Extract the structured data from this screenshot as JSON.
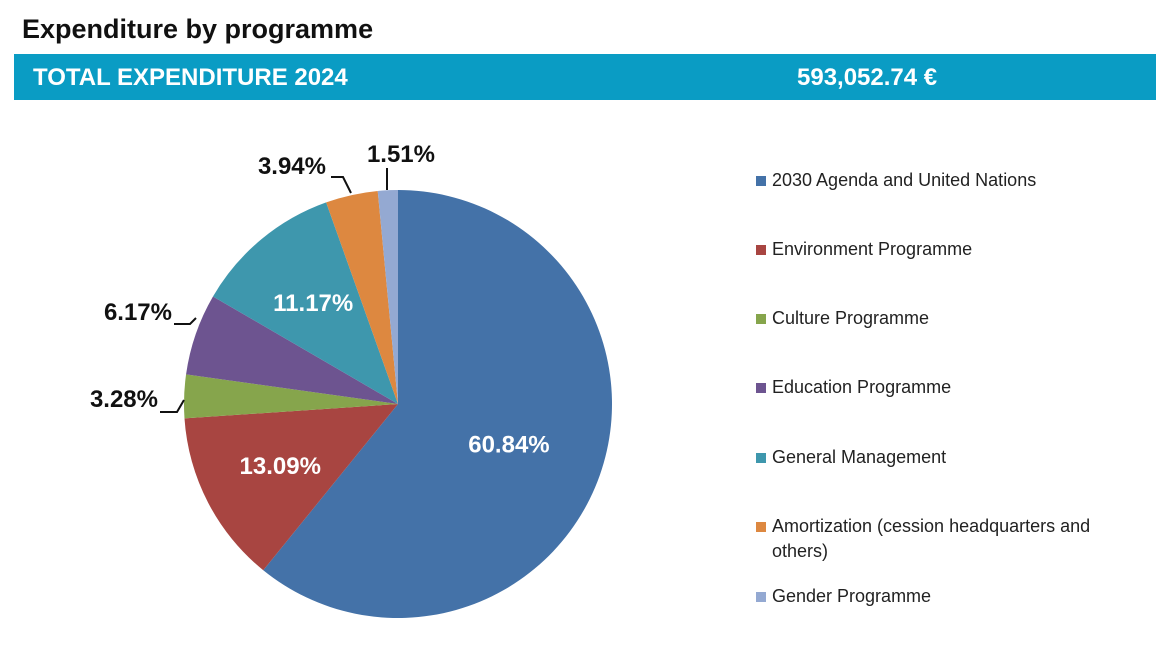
{
  "header": {
    "title": "Expenditure by programme",
    "banner_label": "TOTAL EXPENDITURE 2024",
    "banner_amount": "593,052.74 €",
    "banner_color": "#0a9cc4"
  },
  "chart_data": {
    "type": "pie",
    "title": "",
    "legend_position": "right",
    "slices": [
      {
        "label": "2030 Agenda and United Nations",
        "value": 60.84,
        "display": "60.84%",
        "color": "#4472a8",
        "label_pos": "inside"
      },
      {
        "label": "Environment Programme",
        "value": 13.09,
        "display": "13.09%",
        "color": "#a84541",
        "label_pos": "inside"
      },
      {
        "label": "Culture Programme",
        "value": 3.28,
        "display": "3.28%",
        "color": "#86a54c",
        "label_pos": "outside"
      },
      {
        "label": "Education Programme",
        "value": 6.17,
        "display": "6.17%",
        "color": "#6d5490",
        "label_pos": "outside"
      },
      {
        "label": "General Management",
        "value": 11.17,
        "display": "11.17%",
        "color": "#3e97ad",
        "label_pos": "inside"
      },
      {
        "label": "Amortization (cession headquarters and others)",
        "value": 3.94,
        "display": "3.94%",
        "color": "#dd8840",
        "label_pos": "outside"
      },
      {
        "label": "Gender Programme",
        "value": 1.51,
        "display": "1.51%",
        "color": "#94a9d2",
        "label_pos": "outside"
      }
    ]
  }
}
